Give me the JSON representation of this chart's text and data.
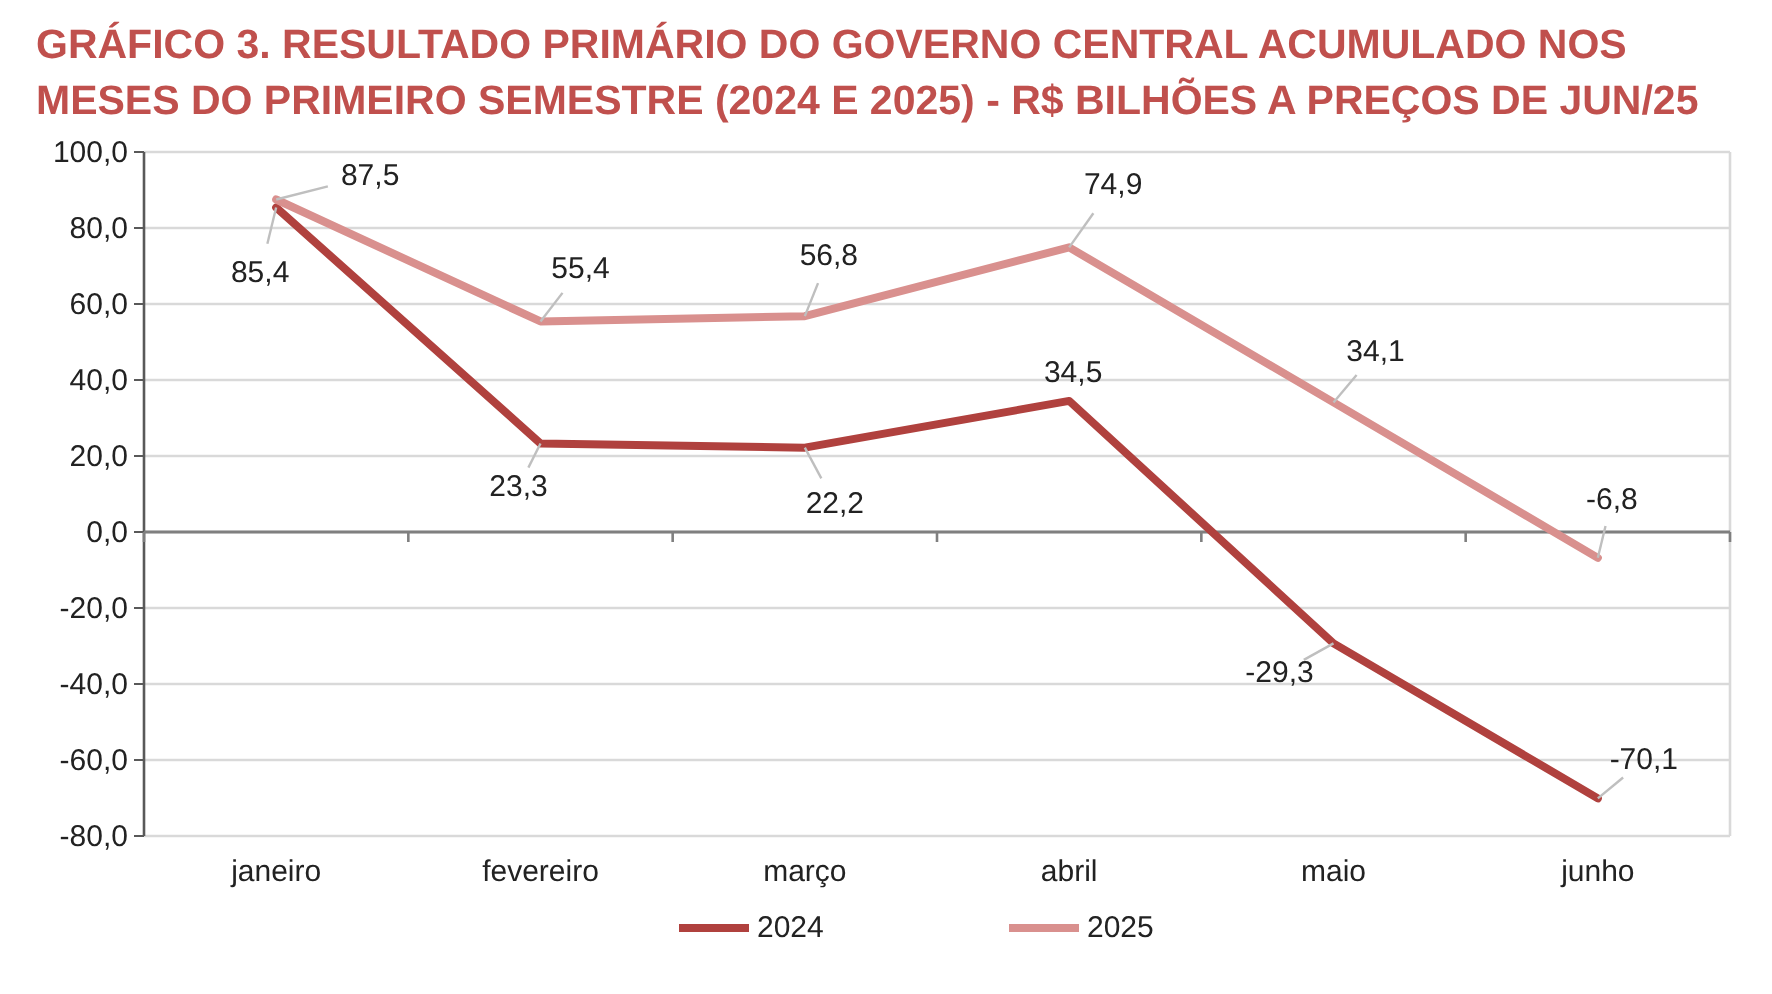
{
  "chart_data": {
    "type": "line",
    "title": "GRÁFICO 3. RESULTADO PRIMÁRIO DO GOVERNO CENTRAL ACUMULADO NOS MESES DO PRIMEIRO SEMESTRE (2024 E 2025) - R$ BILHÕES A PREÇOS DE JUN/25",
    "categories": [
      "janeiro",
      "fevereiro",
      "março",
      "abril",
      "maio",
      "junho"
    ],
    "series": [
      {
        "name": "2024",
        "color": "#b0413e",
        "values": [
          85.4,
          23.3,
          22.2,
          34.5,
          -29.3,
          -70.1
        ],
        "value_labels": [
          "85,4",
          "23,3",
          "22,2",
          "34,5",
          "-29,3",
          "-70,1"
        ]
      },
      {
        "name": "2025",
        "color": "#d9908e",
        "values": [
          87.5,
          55.4,
          56.8,
          74.9,
          34.1,
          -6.8
        ],
        "value_labels": [
          "87,5",
          "55,4",
          "56,8",
          "74,9",
          "34,1",
          "-6,8"
        ]
      }
    ],
    "ylim": [
      -80,
      100
    ],
    "yticks": [
      {
        "value": -80,
        "label": "-80,0"
      },
      {
        "value": -60,
        "label": "-60,0"
      },
      {
        "value": -40,
        "label": "-40,0"
      },
      {
        "value": -20,
        "label": "-20,0"
      },
      {
        "value": 0,
        "label": "0,0"
      },
      {
        "value": 20,
        "label": "20,0"
      },
      {
        "value": 40,
        "label": "40,0"
      },
      {
        "value": 60,
        "label": "60,0"
      },
      {
        "value": 80,
        "label": "80,0"
      },
      {
        "value": 100,
        "label": "100,0"
      }
    ],
    "grid": "y",
    "legend": "bottom",
    "marker": "none",
    "line_style": "solid"
  }
}
